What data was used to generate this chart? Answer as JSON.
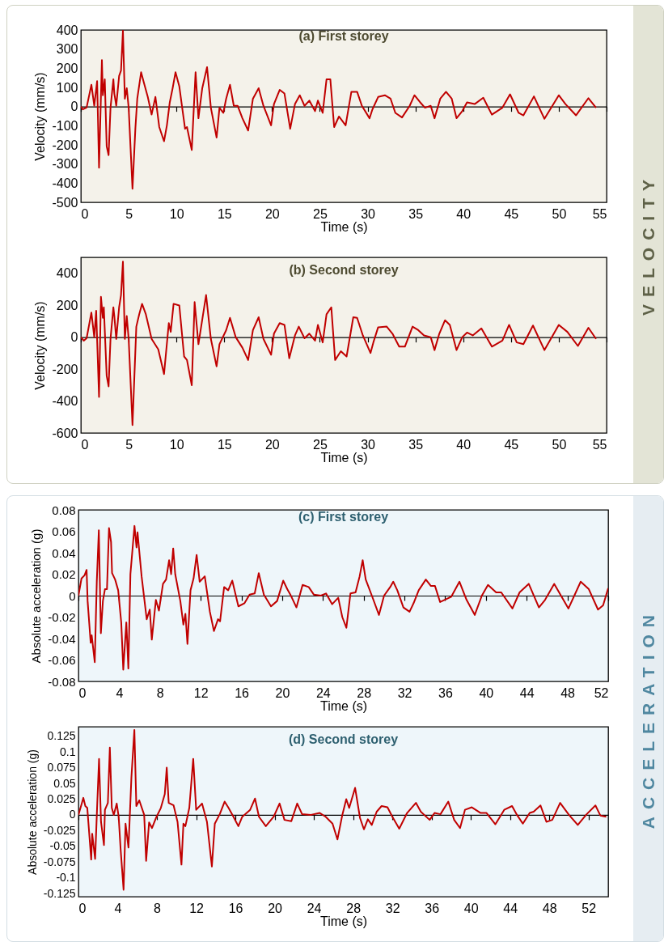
{
  "chart_data": [
    {
      "type": "line",
      "title": "(a) First storey",
      "xlabel": "Time (s)",
      "ylabel": "Velocity (mm/s)",
      "color": "#c00000",
      "annotations": [
        "VELOCITY"
      ],
      "xlim": [
        0,
        55
      ],
      "xticks": [
        0,
        5,
        10,
        15,
        20,
        25,
        30,
        35,
        40,
        45,
        50,
        55
      ],
      "ylim": [
        -500,
        400
      ],
      "yticks": [
        400,
        300,
        200,
        100,
        0,
        -100,
        -200,
        -300,
        -400,
        -500
      ],
      "x": [
        0,
        0.2,
        0.6,
        1.1,
        1.4,
        1.7,
        1.9,
        2.2,
        2.3,
        2.5,
        2.7,
        2.9,
        3.1,
        3.4,
        3.5,
        3.7,
        4.0,
        4.2,
        4.4,
        4.6,
        4.8,
        5.0,
        5.4,
        5.7,
        5.9,
        6.3,
        6.6,
        7.0,
        7.4,
        7.8,
        8.2,
        8.7,
        9.0,
        9.3,
        9.6,
        9.9,
        10.3,
        10.6,
        10.9,
        11.1,
        11.6,
        12.0,
        12.3,
        12.7,
        13.2,
        13.6,
        14.2,
        14.5,
        14.9,
        15.2,
        15.6,
        16.0,
        16.4,
        16.9,
        17.5,
        18.0,
        18.6,
        19.1,
        19.9,
        20.2,
        20.8,
        21.3,
        21.9,
        22.4,
        22.9,
        23.4,
        23.9,
        24.5,
        24.8,
        25.3,
        25.7,
        26.1,
        26.5,
        27.0,
        27.7,
        28.3,
        28.9,
        29.4,
        30.2,
        30.5,
        31.1,
        31.8,
        32.4,
        32.9,
        33.6,
        34.4,
        34.9,
        35.5,
        36.0,
        36.6,
        37.0,
        37.6,
        38.2,
        38.8,
        39.3,
        39.9,
        40.4,
        41.2,
        42.1,
        43.0,
        44.1,
        44.9,
        45.8,
        46.3,
        47.4,
        48.5,
        50.0,
        50.7,
        51.8,
        53.1,
        53.9
      ],
      "values": [
        0,
        -15,
        -5,
        114,
        4,
        133,
        -319,
        243,
        59,
        142,
        -208,
        -254,
        -6,
        142,
        68,
        4,
        160,
        188,
        396,
        41,
        96,
        -6,
        -429,
        -116,
        41,
        179,
        123,
        50,
        -42,
        50,
        -107,
        -181,
        -98,
        22,
        96,
        179,
        105,
        -6,
        -116,
        -107,
        -227,
        179,
        -61,
        96,
        206,
        -6,
        -162,
        -6,
        -33,
        41,
        114,
        4,
        4,
        -61,
        -125,
        41,
        96,
        4,
        -98,
        13,
        87,
        68,
        -116,
        13,
        59,
        4,
        31,
        -24,
        31,
        -33,
        142,
        142,
        -107,
        -52,
        -98,
        77,
        77,
        4,
        -61,
        -15,
        50,
        59,
        41,
        -33,
        -57,
        4,
        59,
        22,
        -6,
        4,
        -61,
        41,
        77,
        41,
        -61,
        -24,
        22,
        13,
        46,
        -42,
        -6,
        64,
        -33,
        -46,
        53,
        -64,
        59,
        13,
        -46,
        44,
        -6
      ]
    },
    {
      "type": "line",
      "title": "(b) Second storey",
      "xlabel": "Time (s)",
      "ylabel": "Velocity (mm/s)",
      "color": "#c00000",
      "xlim": [
        0,
        55
      ],
      "xticks": [
        0,
        5,
        10,
        15,
        20,
        25,
        30,
        35,
        40,
        45,
        50,
        55
      ],
      "ylim": [
        -600,
        500
      ],
      "yticks": [
        400,
        200,
        0,
        -200,
        -400,
        -600
      ],
      "x": [
        0,
        0.3,
        0.6,
        1.1,
        1.4,
        1.6,
        1.9,
        2.1,
        2.3,
        2.4,
        2.7,
        2.9,
        3.1,
        3.4,
        3.5,
        3.7,
        4.0,
        4.2,
        4.4,
        4.6,
        4.8,
        5.0,
        5.4,
        5.8,
        6.1,
        6.4,
        6.8,
        7.4,
        8.1,
        8.7,
        9.2,
        9.4,
        9.7,
        10.3,
        10.8,
        11.1,
        11.6,
        11.9,
        12.3,
        12.7,
        13.1,
        13.6,
        14.2,
        14.5,
        15.2,
        15.6,
        16.2,
        16.9,
        17.5,
        18.0,
        18.6,
        19.1,
        19.9,
        20.2,
        20.8,
        21.3,
        21.8,
        22.4,
        22.8,
        23.4,
        23.9,
        24.5,
        24.8,
        25.3,
        25.7,
        26.2,
        26.6,
        27.2,
        27.8,
        28.5,
        28.9,
        29.5,
        30.3,
        30.6,
        31.1,
        32.0,
        32.6,
        33.3,
        33.9,
        34.7,
        35.3,
        35.9,
        36.6,
        37.0,
        37.5,
        38.1,
        38.6,
        39.3,
        39.9,
        40.4,
        41.0,
        41.9,
        43.0,
        44.1,
        44.8,
        45.6,
        46.3,
        47.3,
        48.5,
        50.0,
        50.9,
        52.0,
        53.1,
        53.9
      ],
      "values": [
        0,
        -22,
        -7,
        154,
        0,
        165,
        -374,
        253,
        121,
        187,
        -242,
        -308,
        -11,
        187,
        132,
        -11,
        187,
        264,
        473,
        -11,
        132,
        -11,
        -550,
        66,
        143,
        209,
        143,
        -11,
        -77,
        -231,
        88,
        33,
        209,
        198,
        -121,
        -143,
        -301,
        220,
        -44,
        110,
        264,
        -11,
        -183,
        -44,
        44,
        121,
        0,
        -66,
        -143,
        44,
        125,
        -11,
        -110,
        22,
        88,
        77,
        -132,
        11,
        66,
        -7,
        22,
        -22,
        77,
        -33,
        143,
        187,
        -143,
        -88,
        -121,
        125,
        121,
        11,
        -99,
        -33,
        62,
        66,
        22,
        -59,
        -59,
        66,
        44,
        11,
        0,
        -81,
        22,
        106,
        77,
        -81,
        0,
        29,
        11,
        55,
        -59,
        -22,
        77,
        -33,
        -44,
        73,
        -81,
        77,
        33,
        -55,
        59,
        -11
      ]
    },
    {
      "type": "line",
      "title": "(c) First storey",
      "xlabel": "Time (s)",
      "ylabel": "Absolute acceleration (g)",
      "color": "#c00000",
      "annotations": [
        "ACCELERATION"
      ],
      "xlim": [
        0,
        52
      ],
      "xticks": [
        0,
        4,
        8,
        12,
        16,
        20,
        24,
        28,
        32,
        36,
        40,
        44,
        48,
        52
      ],
      "ylim": [
        -0.08,
        0.08
      ],
      "yticks": [
        0.08,
        0.06,
        0.04,
        0.02,
        0,
        -0.02,
        -0.04,
        -0.06,
        -0.08
      ],
      "x": [
        0,
        0.3,
        0.6,
        0.8,
        0.9,
        1.2,
        1.3,
        1.6,
        1.8,
        2.0,
        2.2,
        2.4,
        2.6,
        2.8,
        3.0,
        3.2,
        3.3,
        3.6,
        3.9,
        4.2,
        4.4,
        4.7,
        4.9,
        5.1,
        5.5,
        5.7,
        5.8,
        6.2,
        6.7,
        7.0,
        7.2,
        7.6,
        7.9,
        8.3,
        8.6,
        8.9,
        9.1,
        9.3,
        9.5,
        10.0,
        10.3,
        10.5,
        10.7,
        11.0,
        11.3,
        11.6,
        11.9,
        12.4,
        12.9,
        13.3,
        13.7,
        13.9,
        14.3,
        14.7,
        15.1,
        15.7,
        16.3,
        16.8,
        17.3,
        17.7,
        18.2,
        18.9,
        19.5,
        20.1,
        20.5,
        20.8,
        21.4,
        22.0,
        22.6,
        23.1,
        23.8,
        24.3,
        24.9,
        25.5,
        25.9,
        26.3,
        26.7,
        27.2,
        27.6,
        27.9,
        28.2,
        28.8,
        29.5,
        30.0,
        30.6,
        30.9,
        31.3,
        31.9,
        32.5,
        32.9,
        33.4,
        34.1,
        34.6,
        35.0,
        35.5,
        36.6,
        37.4,
        38.1,
        38.9,
        39.6,
        40.2,
        41.0,
        41.5,
        42.6,
        43.3,
        44.2,
        45.2,
        45.8,
        46.7,
        48.1,
        49.3,
        50.1,
        51.0,
        51.5,
        52.0
      ],
      "values": [
        0,
        0.016,
        0.019,
        0.024,
        -0.005,
        -0.044,
        -0.037,
        -0.062,
        0.013,
        0.061,
        -0.035,
        -0.005,
        0.006,
        0.006,
        0.063,
        0.05,
        0.021,
        0.015,
        0.005,
        -0.025,
        -0.069,
        -0.025,
        -0.068,
        0.02,
        0.065,
        0.045,
        0.059,
        0.018,
        -0.022,
        -0.013,
        -0.041,
        -0.004,
        -0.014,
        0.011,
        0.015,
        0.033,
        0.02,
        0.044,
        0.02,
        -0.005,
        -0.027,
        -0.017,
        -0.045,
        0.005,
        0.016,
        0.038,
        0.013,
        0.018,
        -0.015,
        -0.033,
        -0.022,
        -0.024,
        0.008,
        0.005,
        0.014,
        -0.01,
        -0.007,
        0.001,
        0.002,
        0.021,
        0.001,
        -0.01,
        -0.005,
        0.014,
        0.006,
        0.001,
        -0.011,
        0.01,
        0.008,
        0.001,
        0,
        0.002,
        -0.008,
        -0.002,
        -0.02,
        -0.03,
        0.002,
        0.003,
        0.018,
        0.033,
        0.015,
        0,
        -0.018,
        0,
        0.008,
        0.013,
        0.005,
        -0.011,
        -0.015,
        -0.007,
        0.005,
        0.015,
        0.009,
        0.009,
        -0.006,
        -0.001,
        0.013,
        -0.004,
        -0.018,
        0,
        0.01,
        0.003,
        0.003,
        -0.012,
        0.003,
        0.011,
        -0.011,
        -0.004,
        0.011,
        -0.012,
        0.013,
        0.006,
        -0.013,
        -0.009,
        0.007
      ]
    },
    {
      "type": "line",
      "title": "(d) Second storey",
      "xlabel": "Time (s)",
      "ylabel": "Absolute acceleration (g)",
      "color": "#c00000",
      "xlim": [
        0,
        54
      ],
      "xticks": [
        0,
        4,
        8,
        12,
        16,
        20,
        24,
        28,
        32,
        36,
        40,
        44,
        48,
        52
      ],
      "ylim": [
        -0.13,
        0.14
      ],
      "yticks": [
        0.125,
        0.1,
        0.075,
        0.05,
        0.025,
        0,
        -0.025,
        -0.05,
        -0.075,
        -0.1,
        -0.125
      ],
      "x": [
        0,
        0.3,
        0.5,
        0.7,
        0.9,
        1.3,
        1.4,
        1.7,
        1.9,
        2.1,
        2.3,
        2.6,
        2.7,
        3.0,
        3.2,
        3.4,
        3.6,
        3.9,
        4.1,
        4.3,
        4.6,
        4.8,
        5.1,
        5.4,
        5.7,
        5.9,
        6.2,
        6.7,
        6.9,
        7.2,
        7.5,
        7.9,
        8.4,
        8.8,
        9.0,
        9.2,
        9.7,
        10.1,
        10.5,
        10.7,
        10.9,
        11.3,
        11.7,
        12.0,
        12.6,
        13.1,
        13.6,
        13.9,
        14.4,
        14.9,
        15.3,
        15.8,
        16.3,
        16.7,
        17.5,
        18.0,
        18.4,
        19.1,
        19.9,
        20.5,
        21.0,
        21.7,
        22.3,
        22.8,
        23.7,
        24.6,
        25.2,
        25.9,
        26.4,
        26.9,
        27.3,
        27.6,
        28.2,
        28.7,
        29.1,
        29.5,
        29.9,
        30.4,
        30.9,
        31.5,
        32.0,
        32.7,
        33.5,
        34.4,
        34.9,
        35.8,
        36.3,
        36.9,
        37.7,
        38.3,
        38.9,
        39.4,
        40.1,
        41.0,
        41.6,
        42.5,
        43.4,
        44.2,
        44.7,
        45.3,
        46.0,
        46.4,
        47.1,
        47.7,
        48.3,
        49.1,
        50.0,
        50.9,
        51.8,
        52.7,
        53.2,
        53.8
      ],
      "values": [
        0,
        0.016,
        0.027,
        0.014,
        0.011,
        -0.071,
        -0.03,
        -0.07,
        0.011,
        0.089,
        -0.011,
        -0.048,
        0.008,
        0.019,
        0.107,
        0.011,
        0,
        0.018,
        -0.003,
        -0.055,
        -0.119,
        -0.014,
        -0.052,
        0.06,
        0.135,
        0.014,
        0.023,
        0,
        -0.073,
        -0.012,
        -0.021,
        -0.005,
        0.011,
        0.033,
        0.075,
        0.019,
        0.015,
        -0.011,
        -0.079,
        -0.014,
        -0.018,
        0.011,
        0.089,
        0.008,
        0.018,
        -0.011,
        -0.082,
        -0.014,
        0.001,
        0.021,
        0.011,
        -0.003,
        -0.018,
        -0.003,
        0.008,
        0.026,
        -0.003,
        -0.018,
        -0.003,
        0.018,
        -0.008,
        -0.01,
        0.018,
        0.001,
        0,
        0.003,
        -0.003,
        -0.014,
        -0.039,
        0,
        0.025,
        0.011,
        0.043,
        -0.005,
        -0.023,
        -0.007,
        -0.016,
        0.005,
        0.014,
        0.012,
        -0.003,
        -0.022,
        0.003,
        0.019,
        0.005,
        -0.008,
        0.003,
        0.001,
        0.021,
        -0.008,
        -0.021,
        0.008,
        0.012,
        0.003,
        0.003,
        -0.015,
        0.008,
        0.014,
        0,
        -0.014,
        0.003,
        0.005,
        0.015,
        -0.011,
        -0.008,
        0.019,
        0,
        -0.016,
        0.001,
        0.015,
        -0.001,
        -0.003
      ]
    }
  ]
}
